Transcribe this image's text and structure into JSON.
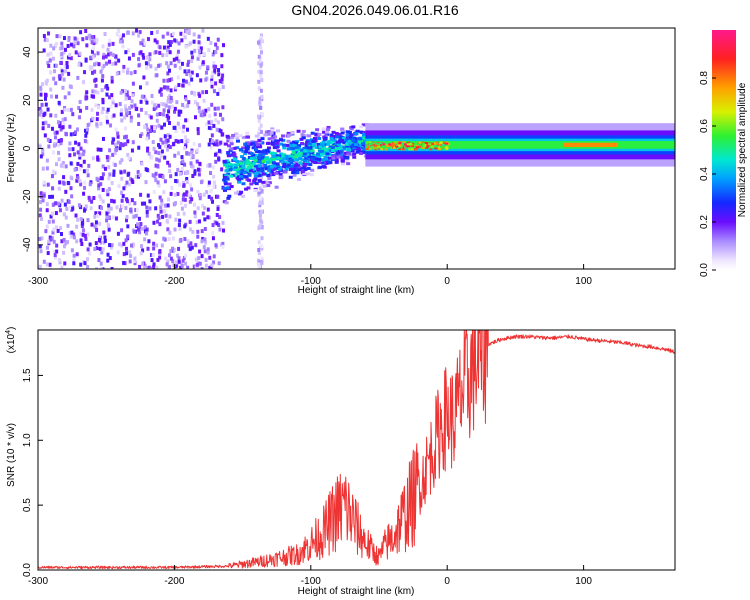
{
  "title": "GN04.2026.049.06.01.R16",
  "chart_data": [
    {
      "type": "heatmap",
      "xlabel": "Height of straight line (km)",
      "ylabel": "Frequency (Hz)",
      "xlim": [
        -300,
        167
      ],
      "ylim": [
        -50,
        50
      ],
      "xticks": [
        -300,
        -200,
        -100,
        0,
        100
      ],
      "yticks": [
        -40,
        -20,
        0,
        20,
        40
      ],
      "colorbar": {
        "label": "Normalized spectral amplitude",
        "range": [
          0.0,
          1.0
        ],
        "ticks": [
          0.0,
          0.2,
          0.4,
          0.6,
          0.8
        ],
        "colormap": [
          "#ffffff",
          "#f0e6ff",
          "#a98bff",
          "#6a0dff",
          "#1428ff",
          "#00a0ff",
          "#00e8d0",
          "#30f030",
          "#d8f000",
          "#ffa000",
          "#ff2020",
          "#ff1a8c"
        ]
      },
      "features": [
        {
          "name": "noise",
          "x_range": [
            -300,
            -165
          ],
          "freq_range": [
            -50,
            50
          ],
          "amplitude": 0.2
        },
        {
          "name": "noise-spike",
          "x": -138,
          "freq_range": [
            -50,
            50
          ],
          "amplitude": 0.1
        },
        {
          "name": "tone-rise",
          "x_range": [
            -165,
            -60
          ],
          "freq_start": -8,
          "freq_end": 4,
          "amplitude": 0.35
        },
        {
          "name": "carrier",
          "x_range": [
            -60,
            167
          ],
          "freq": 1.5,
          "amplitude": 0.85
        }
      ]
    },
    {
      "type": "line",
      "xlabel": "Height of straight line (km)",
      "ylabel": "SNR (10 * v/v)",
      "scale_label": "(x10",
      "scale_exponent": "4",
      "xlim": [
        -300,
        167
      ],
      "ylim": [
        0,
        1.85
      ],
      "xticks": [
        -300,
        -200,
        -100,
        0,
        100
      ],
      "yticks": [
        "0.0",
        "0.5",
        "1.0",
        "1.5"
      ],
      "series": [
        {
          "name": "SNR",
          "color": "#ee3333",
          "x": [
            -300,
            -250,
            -200,
            -160,
            -140,
            -125,
            -110,
            -100,
            -95,
            -90,
            -85,
            -80,
            -75,
            -70,
            -65,
            -60,
            -55,
            -50,
            -45,
            -40,
            -35,
            -30,
            -25,
            -20,
            -15,
            -10,
            -5,
            0,
            5,
            10,
            15,
            20,
            30,
            40,
            50,
            60,
            70,
            80,
            90,
            100,
            110,
            120,
            130,
            140,
            150,
            160,
            167
          ],
          "y": [
            0.02,
            0.02,
            0.02,
            0.03,
            0.06,
            0.09,
            0.12,
            0.2,
            0.25,
            0.3,
            0.38,
            0.45,
            0.5,
            0.4,
            0.3,
            0.22,
            0.15,
            0.1,
            0.2,
            0.25,
            0.35,
            0.45,
            0.55,
            0.65,
            0.8,
            0.95,
            1.1,
            1.2,
            1.15,
            1.35,
            1.45,
            1.6,
            1.74,
            1.78,
            1.8,
            1.8,
            1.79,
            1.79,
            1.8,
            1.78,
            1.77,
            1.76,
            1.75,
            1.73,
            1.72,
            1.7,
            1.68
          ]
        }
      ]
    }
  ]
}
